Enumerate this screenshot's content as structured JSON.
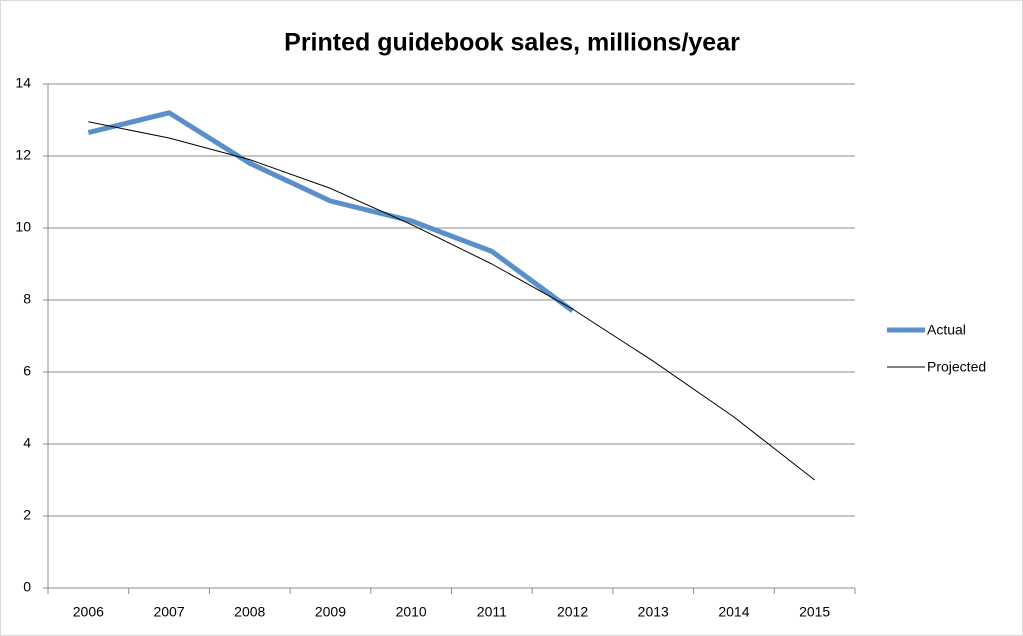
{
  "chart_data": {
    "type": "line",
    "title": "Printed guidebook sales, millions/year",
    "categories": [
      "2006",
      "2007",
      "2008",
      "2009",
      "2010",
      "2011",
      "2012",
      "2013",
      "2014",
      "2015"
    ],
    "series": [
      {
        "name": "Actual",
        "color": "#5b8fc9",
        "values": [
          12.65,
          13.2,
          11.8,
          10.75,
          10.2,
          9.35,
          7.7,
          null,
          null,
          null
        ]
      },
      {
        "name": "Projected",
        "color": "#000000",
        "values": [
          12.95,
          12.5,
          11.9,
          11.1,
          10.1,
          9.0,
          7.75,
          6.3,
          4.75,
          3.0
        ]
      }
    ],
    "ylim": [
      0,
      14
    ],
    "yticks": [
      0,
      2,
      4,
      6,
      8,
      10,
      12,
      14
    ],
    "grid": true,
    "legend": "right"
  }
}
